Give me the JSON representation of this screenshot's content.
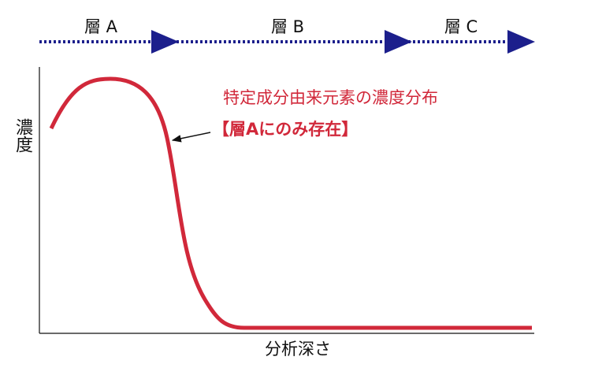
{
  "layers": [
    "層 A",
    "層 B",
    "層 C"
  ],
  "y_axis_label": "濃度",
  "x_axis_label": "分析深さ",
  "annotation": {
    "title": "特定成分由来元素の濃度分布",
    "note": "【層Aにのみ存在】"
  }
}
